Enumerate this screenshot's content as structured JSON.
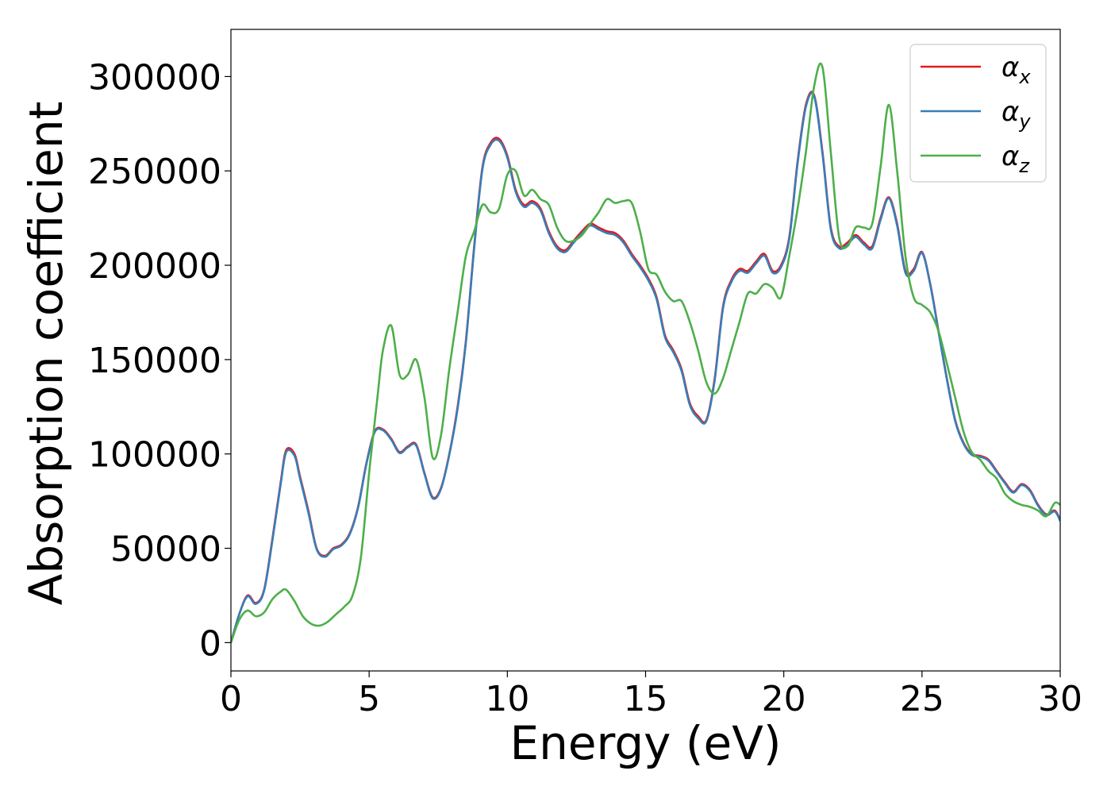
{
  "chart_data": {
    "type": "line",
    "title": "",
    "xlabel": "Energy (eV)",
    "ylabel": "Absorption coefficient",
    "xlim": [
      0,
      30
    ],
    "ylim": [
      -15000,
      325000
    ],
    "xticks": [
      0,
      5,
      10,
      15,
      20,
      25,
      30
    ],
    "yticks": [
      0,
      50000,
      100000,
      150000,
      200000,
      250000,
      300000
    ],
    "grid": false,
    "legend_position": "top-right",
    "series": [
      {
        "name": "α",
        "subscript": "x",
        "color": "#e41a1c",
        "x": [
          0,
          0.3,
          0.6,
          0.9,
          1.2,
          1.5,
          1.8,
          2.0,
          2.3,
          2.5,
          2.8,
          3.1,
          3.4,
          3.7,
          4.0,
          4.3,
          4.6,
          4.9,
          5.2,
          5.5,
          5.8,
          6.1,
          6.4,
          6.7,
          7.0,
          7.3,
          7.6,
          7.9,
          8.2,
          8.5,
          8.8,
          9.1,
          9.4,
          9.7,
          10.0,
          10.3,
          10.6,
          10.9,
          11.2,
          11.5,
          11.8,
          12.1,
          12.4,
          12.7,
          13.0,
          13.3,
          13.6,
          13.9,
          14.2,
          14.5,
          14.8,
          15.1,
          15.4,
          15.7,
          16.0,
          16.3,
          16.6,
          16.9,
          17.2,
          17.5,
          17.8,
          18.1,
          18.4,
          18.7,
          19.0,
          19.3,
          19.6,
          19.9,
          20.2,
          20.5,
          20.8,
          21.1,
          21.4,
          21.7,
          22.0,
          22.3,
          22.6,
          22.9,
          23.2,
          23.5,
          23.8,
          24.1,
          24.4,
          24.7,
          25.0,
          25.3,
          25.6,
          25.9,
          26.2,
          26.5,
          26.8,
          27.1,
          27.4,
          27.7,
          28.0,
          28.3,
          28.6,
          28.9,
          29.2,
          29.5,
          29.8,
          30.0
        ],
        "y": [
          0,
          15000,
          25000,
          21000,
          28000,
          55000,
          85000,
          102000,
          100000,
          88000,
          70000,
          50000,
          46000,
          50000,
          52000,
          58000,
          72000,
          95000,
          112000,
          113000,
          108000,
          101000,
          104000,
          105000,
          90000,
          77000,
          82000,
          100000,
          125000,
          160000,
          210000,
          252000,
          265000,
          267000,
          258000,
          240000,
          232000,
          234000,
          230000,
          218000,
          210000,
          208000,
          213000,
          218000,
          222000,
          220000,
          218000,
          217000,
          213000,
          206000,
          200000,
          193000,
          183000,
          163000,
          155000,
          145000,
          127000,
          120000,
          118000,
          140000,
          178000,
          192000,
          198000,
          197000,
          202000,
          206000,
          197000,
          200000,
          215000,
          255000,
          285000,
          290000,
          260000,
          220000,
          210000,
          212000,
          216000,
          212000,
          210000,
          225000,
          236000,
          222000,
          197000,
          198000,
          207000,
          190000,
          165000,
          140000,
          118000,
          106000,
          100000,
          99000,
          97000,
          91000,
          85000,
          80000,
          84000,
          81000,
          73000,
          68000,
          70000,
          65000
        ]
      },
      {
        "name": "α",
        "subscript": "y",
        "color": "#377eb8",
        "x": [
          0,
          0.3,
          0.6,
          0.9,
          1.2,
          1.5,
          1.8,
          2.0,
          2.3,
          2.5,
          2.8,
          3.1,
          3.4,
          3.7,
          4.0,
          4.3,
          4.6,
          4.9,
          5.2,
          5.5,
          5.8,
          6.1,
          6.4,
          6.7,
          7.0,
          7.3,
          7.6,
          7.9,
          8.2,
          8.5,
          8.8,
          9.1,
          9.4,
          9.7,
          10.0,
          10.3,
          10.6,
          10.9,
          11.2,
          11.5,
          11.8,
          12.1,
          12.4,
          12.7,
          13.0,
          13.3,
          13.6,
          13.9,
          14.2,
          14.5,
          14.8,
          15.1,
          15.4,
          15.7,
          16.0,
          16.3,
          16.6,
          16.9,
          17.2,
          17.5,
          17.8,
          18.1,
          18.4,
          18.7,
          19.0,
          19.3,
          19.6,
          19.9,
          20.2,
          20.5,
          20.8,
          21.1,
          21.4,
          21.7,
          22.0,
          22.3,
          22.6,
          22.9,
          23.2,
          23.5,
          23.8,
          24.1,
          24.4,
          24.7,
          25.0,
          25.3,
          25.6,
          25.9,
          26.2,
          26.5,
          26.8,
          27.1,
          27.4,
          27.7,
          28.0,
          28.3,
          28.6,
          28.9,
          29.2,
          29.5,
          29.8,
          30.0
        ],
        "y": [
          0,
          15000,
          24500,
          20500,
          27500,
          54000,
          84000,
          101000,
          99000,
          87000,
          69000,
          49500,
          45500,
          49500,
          51500,
          57500,
          71500,
          94500,
          111500,
          112500,
          107500,
          100500,
          103500,
          104500,
          89500,
          76500,
          81500,
          99500,
          124000,
          159000,
          209000,
          251000,
          264000,
          266000,
          257000,
          239000,
          231000,
          233000,
          229000,
          217000,
          209000,
          207000,
          212000,
          217000,
          221000,
          219000,
          217000,
          216000,
          212000,
          205000,
          199000,
          192000,
          182000,
          162000,
          154000,
          144000,
          126000,
          119000,
          117500,
          139000,
          177000,
          191000,
          197000,
          196000,
          201000,
          205000,
          196000,
          199000,
          214000,
          254000,
          284000,
          289500,
          259000,
          219000,
          209000,
          211000,
          215000,
          211000,
          209000,
          224000,
          235500,
          221000,
          196000,
          197000,
          206500,
          189500,
          164500,
          139500,
          117500,
          105500,
          99500,
          98500,
          96500,
          90500,
          84500,
          79500,
          83500,
          80500,
          72500,
          67500,
          69500,
          64500
        ]
      },
      {
        "name": "α",
        "subscript": "z",
        "color": "#4daf4a",
        "x": [
          0,
          0.3,
          0.6,
          0.9,
          1.2,
          1.5,
          1.8,
          2.0,
          2.3,
          2.6,
          2.9,
          3.2,
          3.5,
          3.8,
          4.1,
          4.4,
          4.7,
          5.0,
          5.3,
          5.5,
          5.8,
          6.1,
          6.4,
          6.7,
          7.0,
          7.3,
          7.6,
          7.9,
          8.2,
          8.5,
          8.8,
          9.1,
          9.4,
          9.7,
          10.0,
          10.3,
          10.6,
          10.9,
          11.2,
          11.5,
          11.8,
          12.1,
          12.4,
          12.7,
          13.0,
          13.3,
          13.6,
          13.9,
          14.2,
          14.5,
          14.8,
          15.1,
          15.4,
          15.7,
          16.0,
          16.3,
          16.6,
          16.9,
          17.2,
          17.5,
          17.8,
          18.1,
          18.4,
          18.7,
          19.0,
          19.3,
          19.6,
          19.9,
          20.2,
          20.5,
          20.8,
          21.1,
          21.4,
          21.7,
          22.0,
          22.3,
          22.6,
          22.9,
          23.2,
          23.5,
          23.8,
          24.1,
          24.4,
          24.7,
          25.0,
          25.3,
          25.6,
          25.9,
          26.2,
          26.5,
          26.8,
          27.1,
          27.4,
          27.7,
          28.0,
          28.3,
          28.6,
          28.9,
          29.2,
          29.5,
          29.8,
          30.0
        ],
        "y": [
          0,
          12000,
          17000,
          14000,
          16000,
          23000,
          27000,
          28000,
          22000,
          14000,
          10000,
          9000,
          11000,
          15000,
          19000,
          25000,
          45000,
          90000,
          130000,
          155000,
          168000,
          142000,
          142000,
          150000,
          130000,
          98000,
          110000,
          145000,
          175000,
          205000,
          218000,
          232000,
          228000,
          230000,
          248000,
          250000,
          237000,
          240000,
          235000,
          232000,
          220000,
          213000,
          213000,
          216000,
          222000,
          228000,
          235000,
          233000,
          234000,
          233000,
          218000,
          198000,
          195000,
          186000,
          181000,
          181000,
          170000,
          155000,
          138000,
          132000,
          140000,
          155000,
          170000,
          185000,
          185000,
          190000,
          188000,
          183000,
          205000,
          230000,
          260000,
          295000,
          305000,
          260000,
          215000,
          210000,
          220000,
          220000,
          222000,
          252000,
          285000,
          250000,
          205000,
          183000,
          179000,
          175000,
          165000,
          148000,
          130000,
          112000,
          101000,
          97000,
          91000,
          87000,
          79000,
          75000,
          73000,
          72000,
          70000,
          67000,
          74000,
          73000
        ]
      }
    ]
  }
}
